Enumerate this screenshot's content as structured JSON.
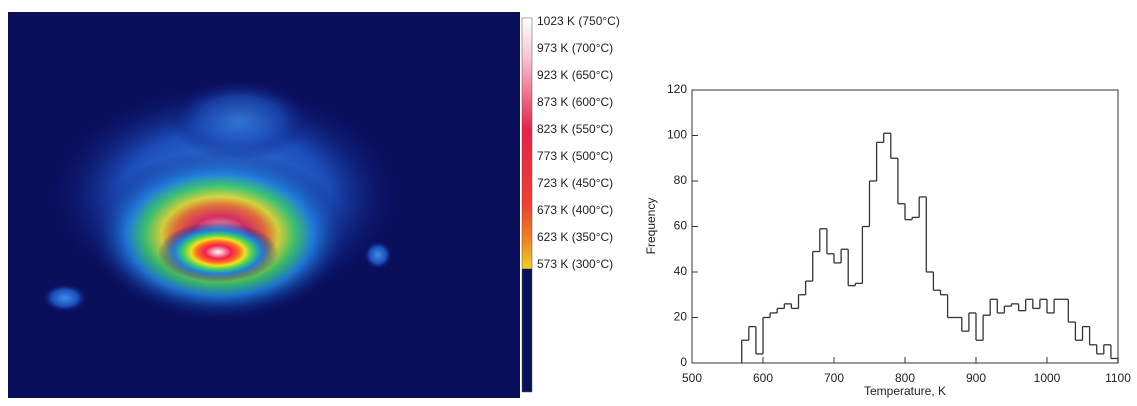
{
  "image": {
    "colorbar_labels": [
      "1023 K (750°C)",
      "973 K (700°C)",
      "923 K (650°C)",
      "873 K (600°C)",
      "823 K (550°C)",
      "773 K (500°C)",
      "723 K (450°C)",
      "673 K (400°C)",
      "623 K (350°C)",
      "573 K (300°C)"
    ]
  },
  "chart_data": {
    "type": "histogram",
    "xlabel": "Temperature, K",
    "ylabel": "Frequency",
    "color": "#333333",
    "bins": [
      570,
      580,
      590,
      600,
      610,
      620,
      630,
      640,
      650,
      660,
      670,
      680,
      690,
      700,
      710,
      720,
      730,
      740,
      750,
      760,
      770,
      780,
      790,
      800,
      810,
      820,
      830,
      840,
      850,
      860,
      870,
      880,
      890,
      900,
      910,
      920,
      930,
      940,
      950,
      960,
      970,
      980,
      990,
      1000,
      1010,
      1020,
      1030,
      1040,
      1050,
      1060,
      1070,
      1080,
      1090,
      1100
    ],
    "values": [
      10,
      16,
      4,
      20,
      22,
      24,
      26,
      24,
      30,
      36,
      49,
      59,
      48,
      44,
      50,
      34,
      35,
      60,
      80,
      97,
      101,
      90,
      70,
      63,
      64,
      73,
      40,
      32,
      30,
      20,
      20,
      14,
      22,
      10,
      21,
      28,
      22,
      25,
      26,
      23,
      28,
      24,
      28,
      22,
      28,
      28,
      18,
      10,
      16,
      8,
      4,
      8,
      2
    ],
    "xlim": [
      500,
      1100
    ],
    "ylim": [
      0,
      120
    ],
    "xticks": [
      500,
      600,
      700,
      800,
      900,
      1000,
      1100
    ],
    "yticks": [
      0,
      20,
      40,
      60,
      80,
      100,
      120
    ]
  }
}
